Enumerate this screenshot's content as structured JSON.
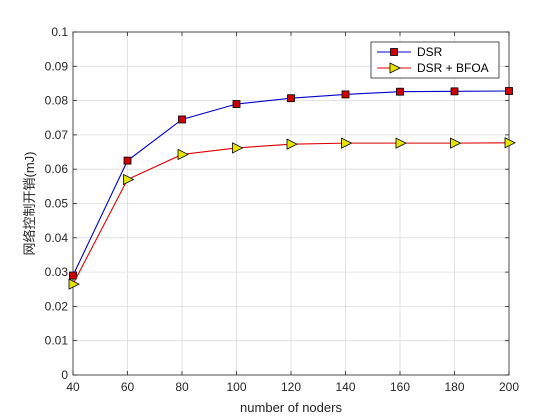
{
  "chart_data": {
    "type": "line",
    "xlabel": "number of noders",
    "ylabel": "网络控制开销(mJ)",
    "x": [
      40,
      60,
      80,
      100,
      120,
      140,
      160,
      180,
      200
    ],
    "xticks": [
      "40",
      "60",
      "80",
      "100",
      "120",
      "140",
      "160",
      "180",
      "200"
    ],
    "yticks": [
      "0",
      "0.01",
      "0.02",
      "0.03",
      "0.04",
      "0.05",
      "0.06",
      "0.07",
      "0.08",
      "0.09",
      "0.1"
    ],
    "xlim": [
      40,
      200
    ],
    "ylim": [
      0,
      0.1
    ],
    "grid": true,
    "legend_position": "top-right",
    "series": [
      {
        "name": "DSR",
        "color": "#0000cc",
        "marker": "square",
        "marker_color": "#cc0000",
        "values": [
          0.029,
          0.0625,
          0.0745,
          0.079,
          0.0807,
          0.0818,
          0.0826,
          0.0827,
          0.0828
        ]
      },
      {
        "name": "DSR + BFOA",
        "color": "#dd0000",
        "marker": "triangle-right",
        "marker_color": "#e6e600",
        "values": [
          0.0265,
          0.057,
          0.0643,
          0.0662,
          0.0673,
          0.0676,
          0.0676,
          0.0676,
          0.0677
        ]
      }
    ]
  }
}
